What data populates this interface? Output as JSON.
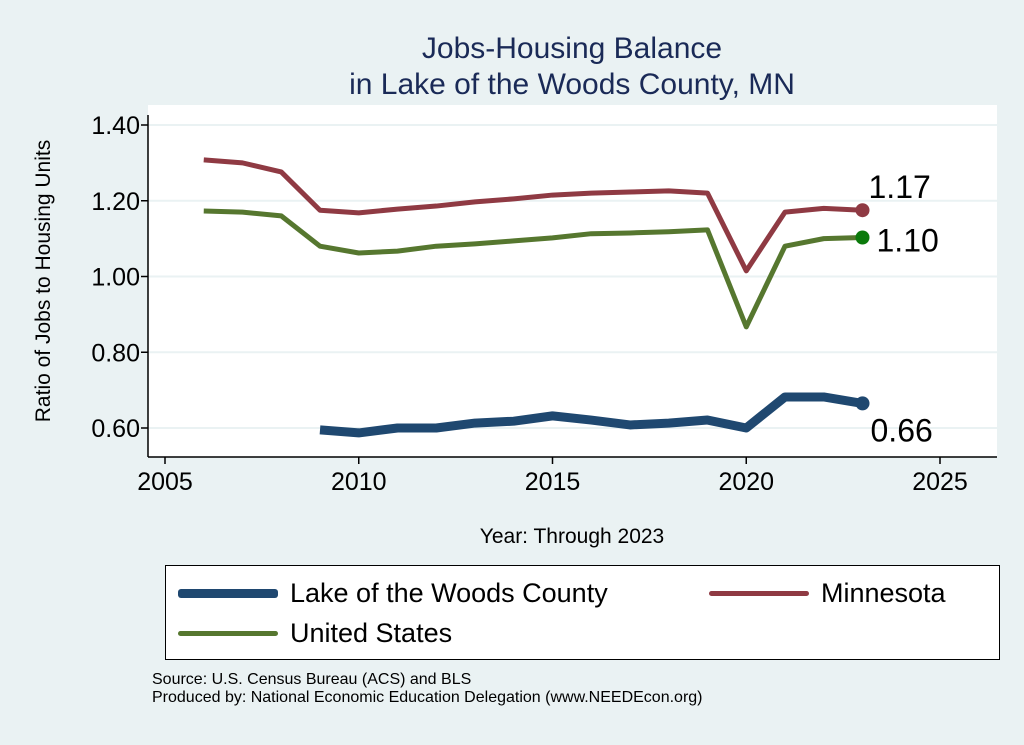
{
  "chart_data": {
    "type": "line",
    "title": [
      "Jobs-Housing Balance",
      "in Lake of the Woods County, MN"
    ],
    "xlabel": "Year: Through 2023",
    "ylabel": "Ratio of Jobs to Housing Units",
    "xlim": [
      2004.5,
      2026.5
    ],
    "ylim": [
      0.55,
      1.445
    ],
    "xticks": [
      2005,
      2010,
      2015,
      2020,
      2025
    ],
    "yticks": [
      0.6,
      0.8,
      1.0,
      1.2,
      1.4
    ],
    "ytick_labels": [
      "0.60",
      "0.80",
      "1.00",
      "1.20",
      "1.40"
    ],
    "grid": true,
    "legend_position": "bottom",
    "series": [
      {
        "name": "Lake of the Woods County",
        "color": "#1f4870",
        "width": 9,
        "x": [
          2009,
          2010,
          2011,
          2012,
          2013,
          2014,
          2015,
          2016,
          2017,
          2018,
          2019,
          2020,
          2021,
          2022,
          2023
        ],
        "values": [
          0.595,
          0.587,
          0.6,
          0.6,
          0.613,
          0.618,
          0.632,
          0.621,
          0.608,
          0.613,
          0.621,
          0.6,
          0.682,
          0.682,
          0.665
        ],
        "end_label": "0.66"
      },
      {
        "name": "Minnesota",
        "color": "#8f3a43",
        "width": 5,
        "x": [
          2006,
          2007,
          2008,
          2009,
          2010,
          2011,
          2012,
          2013,
          2014,
          2015,
          2016,
          2017,
          2018,
          2019,
          2020,
          2021,
          2022,
          2023
        ],
        "values": [
          1.308,
          1.3,
          1.276,
          1.175,
          1.168,
          1.178,
          1.186,
          1.197,
          1.205,
          1.215,
          1.22,
          1.223,
          1.226,
          1.22,
          1.015,
          1.17,
          1.18,
          1.175
        ],
        "end_label": "1.17"
      },
      {
        "name": "United States",
        "color": "#56772f",
        "width": 5,
        "marker_color": "#0b7a0b",
        "x": [
          2006,
          2007,
          2008,
          2009,
          2010,
          2011,
          2012,
          2013,
          2014,
          2015,
          2016,
          2017,
          2018,
          2019,
          2020,
          2021,
          2022,
          2023
        ],
        "values": [
          1.173,
          1.17,
          1.16,
          1.08,
          1.062,
          1.067,
          1.08,
          1.086,
          1.094,
          1.102,
          1.113,
          1.115,
          1.118,
          1.123,
          0.867,
          1.08,
          1.1,
          1.103
        ],
        "end_label": "1.10"
      }
    ]
  },
  "notes": {
    "source": "Source: U.S. Census Bureau (ACS) and BLS",
    "produced": "Produced by: National Economic Education Delegation (www.NEEDEcon.org)"
  }
}
